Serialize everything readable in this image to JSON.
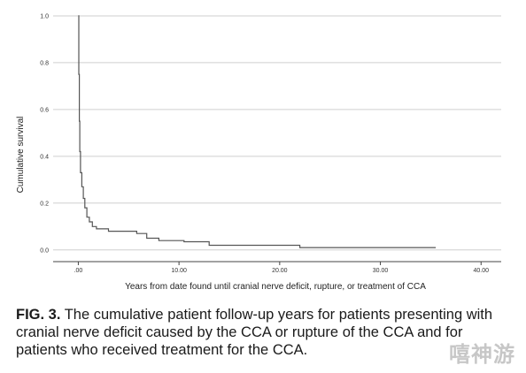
{
  "chart_data": {
    "type": "line",
    "xlabel": "Years from date found until cranial nerve deficit, rupture, or treatment of CCA",
    "ylabel": "Cumulative survival",
    "xlim": [
      -2.5,
      42
    ],
    "ylim": [
      -0.05,
      1.03
    ],
    "x_ticks": [
      0,
      10,
      20,
      30,
      40
    ],
    "x_tick_labels": [
      ".00",
      "10.00",
      "20.00",
      "30.00",
      "40.00"
    ],
    "y_ticks": [
      0.0,
      0.2,
      0.4,
      0.6,
      0.8,
      1.0
    ],
    "y_tick_labels": [
      "0.0",
      "0.2",
      "0.4",
      "0.6",
      "0.8",
      "1.0"
    ],
    "grid": "horizontal",
    "line_style": "step",
    "series": [
      {
        "color": "#555555",
        "points": [
          [
            0.0,
            1.0
          ],
          [
            0.05,
            0.75
          ],
          [
            0.1,
            0.55
          ],
          [
            0.15,
            0.42
          ],
          [
            0.22,
            0.33
          ],
          [
            0.35,
            0.27
          ],
          [
            0.5,
            0.22
          ],
          [
            0.65,
            0.18
          ],
          [
            0.85,
            0.14
          ],
          [
            1.1,
            0.12
          ],
          [
            1.4,
            0.1
          ],
          [
            1.8,
            0.09
          ],
          [
            3.0,
            0.08
          ],
          [
            5.8,
            0.07
          ],
          [
            6.8,
            0.05
          ],
          [
            8.0,
            0.04
          ],
          [
            10.5,
            0.035
          ],
          [
            13.0,
            0.02
          ],
          [
            22.0,
            0.01
          ],
          [
            35.5,
            0.01
          ]
        ]
      }
    ]
  },
  "caption": {
    "label": "FIG. 3.",
    "text": " The cumulative patient follow-up years for patients presenting with cranial nerve deficit caused by the CCA or rupture of the CCA and for patients who received treatment for the CCA."
  },
  "watermark": "嘻神游"
}
